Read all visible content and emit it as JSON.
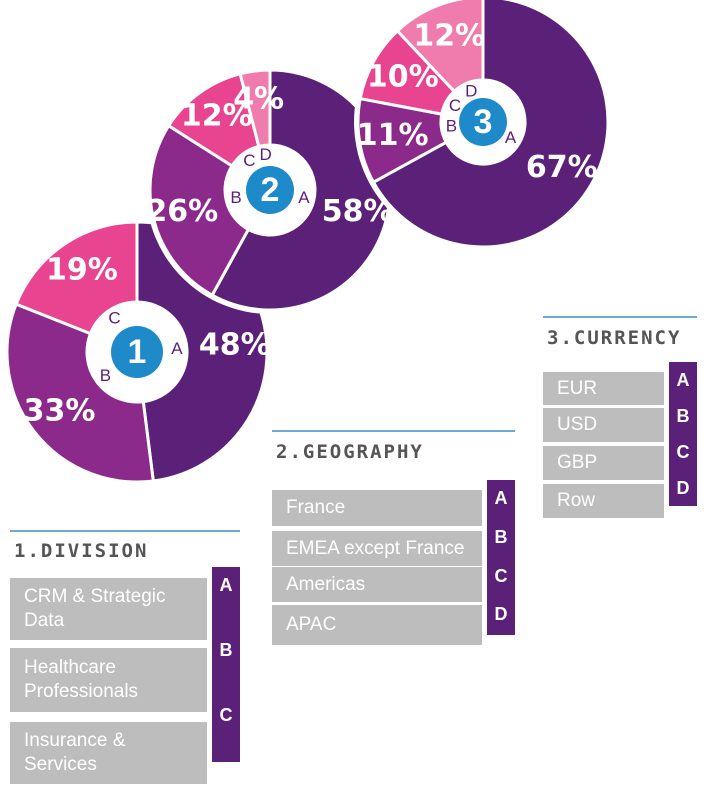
{
  "chart_data": [
    {
      "type": "pie",
      "title": "1.DIVISION",
      "badge": "1",
      "categories": [
        "CRM & Strategic Data",
        "Healthcare Professionals",
        "Insurance & Services"
      ],
      "letters": [
        "A",
        "B",
        "C"
      ],
      "values": [
        48,
        33,
        19
      ],
      "value_labels": [
        "48%",
        "33%",
        "19%"
      ],
      "colors": [
        "#5b2179",
        "#8b2a8a",
        "#e8448f"
      ]
    },
    {
      "type": "pie",
      "title": "2.GEOGRAPHY",
      "badge": "2",
      "categories": [
        "France",
        "EMEA except France",
        "Americas",
        "APAC"
      ],
      "letters": [
        "A",
        "B",
        "C",
        "D"
      ],
      "values": [
        58,
        26,
        12,
        4
      ],
      "value_labels": [
        "58%",
        "26%",
        "12%",
        "4%"
      ],
      "colors": [
        "#5b2179",
        "#8b2a8a",
        "#e8448f",
        "#f07cae"
      ]
    },
    {
      "type": "pie",
      "title": "3.CURRENCY",
      "badge": "3",
      "categories": [
        "EUR",
        "USD",
        "GBP",
        "Row"
      ],
      "letters": [
        "A",
        "B",
        "C",
        "D"
      ],
      "values": [
        67,
        11,
        10,
        12
      ],
      "value_labels": [
        "67%",
        "11%",
        "10%",
        "12%"
      ],
      "colors": [
        "#5b2179",
        "#8b2a8a",
        "#e8448f",
        "#f07cae"
      ]
    }
  ]
}
